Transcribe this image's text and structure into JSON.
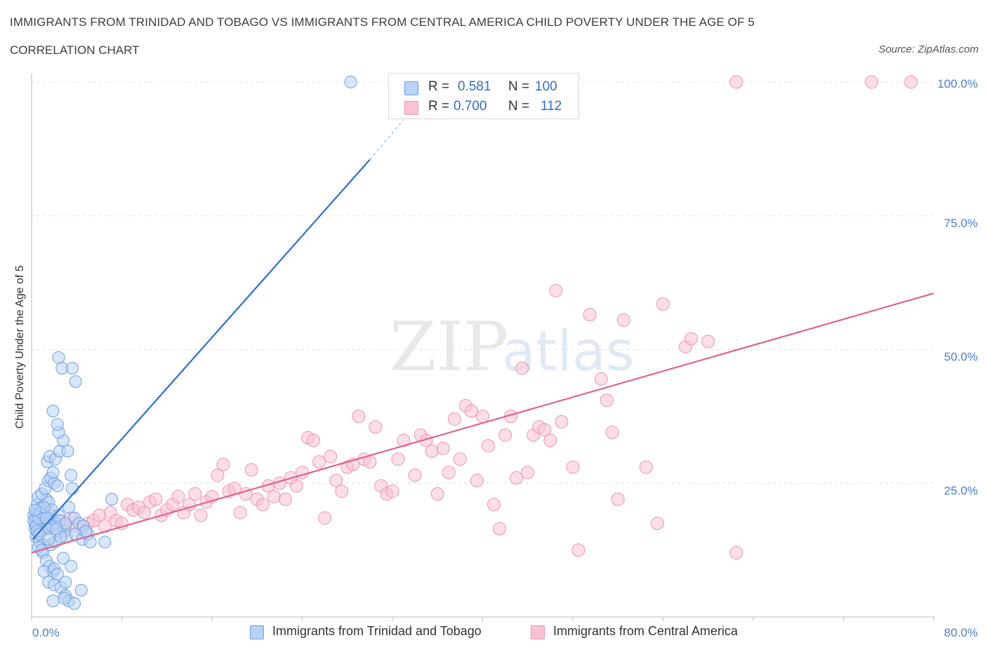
{
  "header": {
    "title": "IMMIGRANTS FROM TRINIDAD AND TOBAGO VS IMMIGRANTS FROM CENTRAL AMERICA CHILD POVERTY UNDER THE AGE OF 5",
    "subtitle": "CORRELATION CHART",
    "source": "Source: ZipAtlas.com"
  },
  "watermark": {
    "zip": "ZIP",
    "atlas": "atlas"
  },
  "legend": {
    "r_label": "R =",
    "n_label": "N =",
    "series_a": {
      "r": "0.581",
      "n": "100"
    },
    "series_b": {
      "r": "0.700",
      "n": "112"
    }
  },
  "colors": {
    "series_a_fill": "#b9d3f5",
    "series_a_stroke": "#6f9ee0",
    "series_a_line": "#2f6fd0",
    "series_b_fill": "#f8c3d3",
    "series_b_stroke": "#ee92b0",
    "series_b_line": "#e0628f",
    "tick_text": "#4a7ec9",
    "grid": "#e3e3e3"
  },
  "chart_data": {
    "type": "scatter",
    "title": "IMMIGRANTS FROM TRINIDAD AND TOBAGO VS IMMIGRANTS FROM CENTRAL AMERICA CHILD POVERTY UNDER THE AGE OF 5",
    "xlabel": "",
    "ylabel": "Child Poverty Under the Age of 5",
    "xlim": [
      0,
      80
    ],
    "ylim": [
      0,
      104
    ],
    "x_tick_labels": [
      "0.0%",
      "80.0%"
    ],
    "y_ticks": [
      {
        "value": 25,
        "label": "25.0%"
      },
      {
        "value": 50,
        "label": "50.0%"
      },
      {
        "value": 75,
        "label": "75.0%"
      },
      {
        "value": 100,
        "label": "100.0%"
      }
    ],
    "grid": true,
    "legend_position": "top-center",
    "series": [
      {
        "name": "Immigrants from Trinidad and Tobago",
        "r": 0.581,
        "n": 100,
        "trendline": {
          "x": [
            0.1,
            30
          ],
          "y": [
            14.5,
            85.5
          ],
          "extends_dashed_to": [
            33,
            93
          ]
        },
        "points": [
          [
            0.2,
            19
          ],
          [
            0.3,
            17.5
          ],
          [
            0.4,
            18.5
          ],
          [
            0.5,
            20
          ],
          [
            0.6,
            17
          ],
          [
            0.7,
            19.5
          ],
          [
            0.3,
            16.5
          ],
          [
            0.8,
            18
          ],
          [
            1.0,
            17.5
          ],
          [
            1.2,
            19
          ],
          [
            0.5,
            21
          ],
          [
            0.9,
            20.5
          ],
          [
            1.1,
            18
          ],
          [
            1.4,
            17
          ],
          [
            1.6,
            19.5
          ],
          [
            0.4,
            15
          ],
          [
            0.7,
            14
          ],
          [
            1.0,
            13.5
          ],
          [
            1.3,
            22
          ],
          [
            1.5,
            21.5
          ],
          [
            1.8,
            20
          ],
          [
            2.0,
            18
          ],
          [
            2.2,
            17.5
          ],
          [
            2.4,
            19
          ],
          [
            0.6,
            22.5
          ],
          [
            0.9,
            23
          ],
          [
            1.2,
            24
          ],
          [
            1.5,
            25.5
          ],
          [
            1.7,
            26
          ],
          [
            2.0,
            25
          ],
          [
            2.3,
            24.5
          ],
          [
            1.9,
            27
          ],
          [
            1.4,
            29
          ],
          [
            1.6,
            30
          ],
          [
            2.1,
            29.5
          ],
          [
            2.5,
            31
          ],
          [
            2.8,
            33
          ],
          [
            3.2,
            31
          ],
          [
            2.4,
            34.5
          ],
          [
            2.3,
            36
          ],
          [
            1.9,
            38.5
          ],
          [
            2.4,
            48.5
          ],
          [
            2.7,
            46.5
          ],
          [
            3.6,
            46.5
          ],
          [
            3.9,
            44
          ],
          [
            3.5,
            26.5
          ],
          [
            3.6,
            24
          ],
          [
            3.3,
            20.5
          ],
          [
            3.8,
            18.5
          ],
          [
            4.2,
            17.5
          ],
          [
            4.6,
            17
          ],
          [
            2.9,
            16
          ],
          [
            3.1,
            15
          ],
          [
            3.9,
            15.5
          ],
          [
            4.5,
            14.5
          ],
          [
            5.0,
            15.5
          ],
          [
            4.8,
            16
          ],
          [
            5.2,
            14
          ],
          [
            6.5,
            14
          ],
          [
            7.1,
            22
          ],
          [
            1.0,
            12
          ],
          [
            1.3,
            10.5
          ],
          [
            1.6,
            9.5
          ],
          [
            1.9,
            8.5
          ],
          [
            1.1,
            8.5
          ],
          [
            2.0,
            9
          ],
          [
            2.3,
            8
          ],
          [
            2.8,
            11
          ],
          [
            3.5,
            9.5
          ],
          [
            1.5,
            6.5
          ],
          [
            2.0,
            6
          ],
          [
            2.6,
            5.5
          ],
          [
            3.0,
            6.5
          ],
          [
            4.4,
            5
          ],
          [
            1.9,
            3
          ],
          [
            3.0,
            4
          ],
          [
            3.3,
            3
          ],
          [
            3.8,
            2.5
          ],
          [
            2.9,
            3.5
          ],
          [
            0.6,
            13
          ],
          [
            0.9,
            12.5
          ],
          [
            1.7,
            13.5
          ],
          [
            2.1,
            14
          ],
          [
            2.6,
            15
          ],
          [
            1.4,
            16.5
          ],
          [
            1.8,
            17
          ],
          [
            2.5,
            18
          ],
          [
            3.0,
            17.5
          ],
          [
            0.2,
            18
          ],
          [
            0.4,
            17
          ],
          [
            0.6,
            18.5
          ],
          [
            0.8,
            19.5
          ],
          [
            1.1,
            20.5
          ],
          [
            1.3,
            18.5
          ],
          [
            0.5,
            16
          ],
          [
            0.7,
            15.5
          ],
          [
            1.5,
            14.5
          ],
          [
            2.2,
            16.5
          ],
          [
            28.3,
            100
          ],
          [
            0.3,
            20
          ]
        ]
      },
      {
        "name": "Immigrants from Central America",
        "r": 0.7,
        "n": 112,
        "trendline": {
          "x": [
            0,
            80
          ],
          "y": [
            12,
            60.5
          ]
        },
        "points": [
          [
            0.5,
            17
          ],
          [
            1.0,
            16.5
          ],
          [
            1.5,
            17.5
          ],
          [
            2.0,
            18
          ],
          [
            2.5,
            16
          ],
          [
            3.0,
            17
          ],
          [
            3.5,
            18.5
          ],
          [
            4.0,
            17
          ],
          [
            4.5,
            16.5
          ],
          [
            5.0,
            17.5
          ],
          [
            5.5,
            18
          ],
          [
            6.0,
            19
          ],
          [
            6.5,
            17
          ],
          [
            7.0,
            19.5
          ],
          [
            7.5,
            18
          ],
          [
            8.0,
            17.5
          ],
          [
            8.5,
            21
          ],
          [
            9.0,
            20
          ],
          [
            9.5,
            20.5
          ],
          [
            10.0,
            19.5
          ],
          [
            10.5,
            21.5
          ],
          [
            11.0,
            22
          ],
          [
            11.5,
            19
          ],
          [
            12.0,
            20
          ],
          [
            12.5,
            21
          ],
          [
            13.0,
            22.5
          ],
          [
            13.5,
            19.5
          ],
          [
            14.0,
            21
          ],
          [
            14.5,
            23
          ],
          [
            15.0,
            19
          ],
          [
            15.5,
            21.5
          ],
          [
            16.0,
            22.5
          ],
          [
            16.5,
            26.5
          ],
          [
            17.0,
            28.5
          ],
          [
            17.5,
            23.5
          ],
          [
            18.0,
            24
          ],
          [
            18.5,
            19.5
          ],
          [
            19.0,
            23
          ],
          [
            19.5,
            27.5
          ],
          [
            20.0,
            22
          ],
          [
            20.5,
            21
          ],
          [
            21.0,
            24.5
          ],
          [
            21.5,
            22.5
          ],
          [
            22.0,
            25
          ],
          [
            22.5,
            22
          ],
          [
            23.0,
            26
          ],
          [
            23.5,
            24.5
          ],
          [
            24.0,
            27
          ],
          [
            24.5,
            33.5
          ],
          [
            25.0,
            33
          ],
          [
            25.5,
            29
          ],
          [
            26.0,
            18.5
          ],
          [
            26.5,
            30
          ],
          [
            27.0,
            25.5
          ],
          [
            27.5,
            23.5
          ],
          [
            28.0,
            28
          ],
          [
            28.5,
            28.5
          ],
          [
            29.0,
            37.5
          ],
          [
            29.5,
            29.5
          ],
          [
            30.0,
            29
          ],
          [
            30.5,
            35.5
          ],
          [
            31.0,
            24.5
          ],
          [
            31.5,
            23
          ],
          [
            32.0,
            23.5
          ],
          [
            32.5,
            29.5
          ],
          [
            33.0,
            33
          ],
          [
            34.0,
            26.5
          ],
          [
            34.5,
            34
          ],
          [
            35.0,
            33
          ],
          [
            35.5,
            31
          ],
          [
            36.0,
            23
          ],
          [
            36.5,
            31.5
          ],
          [
            37.0,
            27
          ],
          [
            37.5,
            37
          ],
          [
            38.0,
            29.5
          ],
          [
            38.5,
            39.5
          ],
          [
            39.0,
            38.5
          ],
          [
            39.5,
            25.5
          ],
          [
            40.0,
            37.5
          ],
          [
            40.5,
            32
          ],
          [
            41.0,
            21
          ],
          [
            41.5,
            16.5
          ],
          [
            42.0,
            34
          ],
          [
            42.5,
            37.5
          ],
          [
            43.0,
            26
          ],
          [
            43.5,
            46.5
          ],
          [
            44.0,
            27
          ],
          [
            44.5,
            34
          ],
          [
            45.0,
            35.5
          ],
          [
            45.5,
            35
          ],
          [
            46.0,
            33
          ],
          [
            46.5,
            61
          ],
          [
            47.0,
            36.5
          ],
          [
            48.0,
            28
          ],
          [
            48.5,
            12.5
          ],
          [
            49.5,
            56.5
          ],
          [
            50.5,
            44.5
          ],
          [
            51.0,
            40.5
          ],
          [
            51.5,
            34.5
          ],
          [
            52.0,
            22
          ],
          [
            52.5,
            55.5
          ],
          [
            54.5,
            28
          ],
          [
            55.5,
            17.5
          ],
          [
            56.0,
            58.5
          ],
          [
            58.0,
            50.5
          ],
          [
            58.5,
            52
          ],
          [
            60.0,
            51.5
          ],
          [
            62.5,
            12
          ],
          [
            62.5,
            100
          ],
          [
            74.5,
            100
          ],
          [
            78,
            100
          ],
          [
            1.5,
            19
          ]
        ]
      }
    ]
  },
  "bottom_legend": [
    {
      "label": "Immigrants from Trinidad and Tobago"
    },
    {
      "label": "Immigrants from Central America"
    }
  ]
}
